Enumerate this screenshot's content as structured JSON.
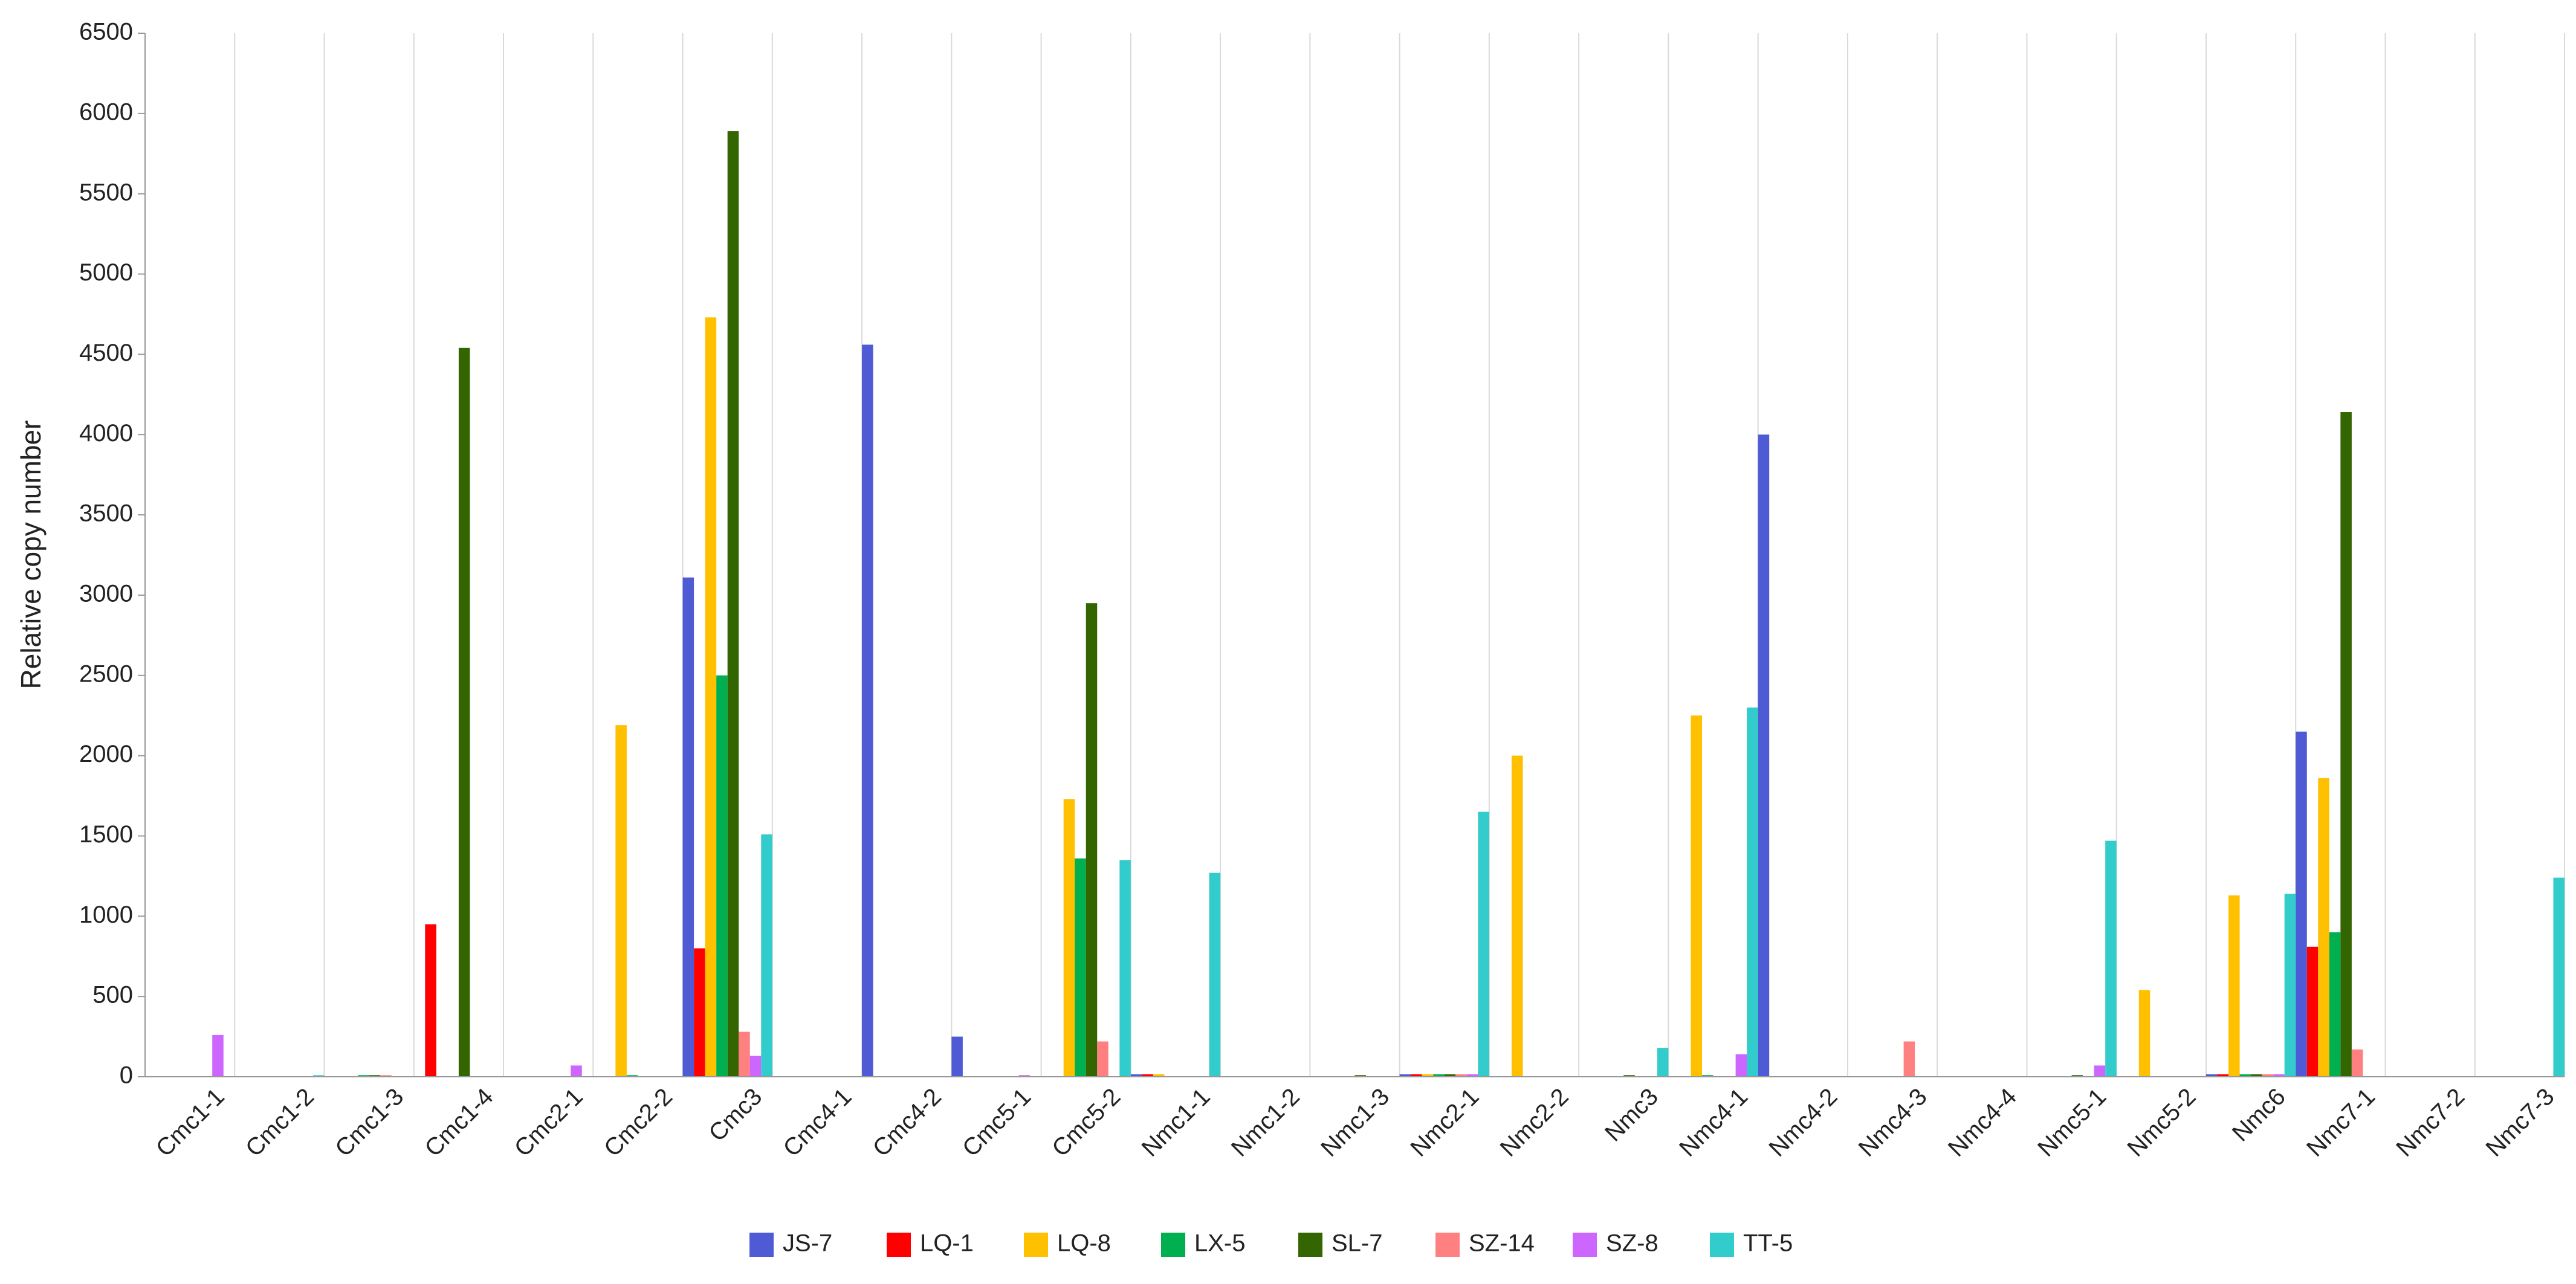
{
  "chart_data": {
    "type": "bar",
    "y_label": "Relative copy number",
    "categories": [
      "Cmc1-1",
      "Cmc1-2",
      "Cmc1-3",
      "Cmc1-4",
      "Cmc2-1",
      "Cmc2-2",
      "Cmc3",
      "Cmc4-1",
      "Cmc4-2",
      "Cmc5-1",
      "Cmc5-2",
      "Nmc1-1",
      "Nmc1-2",
      "Nmc1-3",
      "Nmc2-1",
      "Nmc2-2",
      "Nmc3",
      "Nmc4-1",
      "Nmc4-2",
      "Nmc4-3",
      "Nmc4-4",
      "Nmc5-1",
      "Nmc5-2",
      "Nmc6",
      "Nmc7-1",
      "Nmc7-2",
      "Nmc7-3"
    ],
    "series": [
      {
        "name": "JS-7",
        "color": "#4f5bd5",
        "values": [
          0,
          0,
          0,
          0,
          0,
          0,
          3110,
          0,
          4560,
          250,
          0,
          15,
          0,
          0,
          15,
          0,
          0,
          0,
          4000,
          0,
          0,
          0,
          0,
          15,
          2150,
          0,
          0
        ]
      },
      {
        "name": "LQ-1",
        "color": "#ff0000",
        "values": [
          0,
          0,
          0,
          950,
          0,
          0,
          800,
          0,
          0,
          0,
          0,
          15,
          0,
          0,
          15,
          0,
          0,
          0,
          0,
          0,
          0,
          0,
          0,
          15,
          810,
          0,
          0
        ]
      },
      {
        "name": "LQ-8",
        "color": "#ffc000",
        "values": [
          0,
          0,
          0,
          0,
          0,
          2190,
          4730,
          0,
          0,
          0,
          1730,
          15,
          0,
          0,
          15,
          2000,
          0,
          2250,
          0,
          0,
          0,
          0,
          540,
          1130,
          1860,
          0,
          0
        ]
      },
      {
        "name": "LX-5",
        "color": "#00b050",
        "values": [
          0,
          0,
          10,
          0,
          0,
          10,
          2500,
          0,
          0,
          0,
          1360,
          0,
          0,
          0,
          15,
          0,
          0,
          10,
          0,
          0,
          0,
          0,
          0,
          15,
          900,
          0,
          0
        ]
      },
      {
        "name": "SL-7",
        "color": "#336600",
        "values": [
          0,
          0,
          10,
          4540,
          0,
          0,
          5890,
          0,
          0,
          0,
          2950,
          0,
          0,
          10,
          15,
          0,
          10,
          0,
          0,
          0,
          0,
          10,
          0,
          15,
          4140,
          0,
          0
        ]
      },
      {
        "name": "SZ-14",
        "color": "#ff8080",
        "values": [
          0,
          0,
          10,
          0,
          0,
          0,
          280,
          0,
          0,
          0,
          220,
          0,
          0,
          0,
          15,
          0,
          0,
          0,
          0,
          220,
          0,
          0,
          0,
          15,
          170,
          0,
          0
        ]
      },
      {
        "name": "SZ-8",
        "color": "#cc66ff",
        "values": [
          260,
          0,
          0,
          0,
          70,
          0,
          130,
          0,
          0,
          10,
          0,
          0,
          0,
          0,
          15,
          0,
          0,
          140,
          0,
          0,
          0,
          70,
          0,
          15,
          0,
          0,
          0
        ]
      },
      {
        "name": "TT-5",
        "color": "#33cccc",
        "values": [
          0,
          10,
          0,
          0,
          0,
          0,
          1510,
          0,
          0,
          0,
          1350,
          1270,
          0,
          0,
          1650,
          0,
          180,
          2300,
          0,
          0,
          0,
          1470,
          0,
          1140,
          0,
          0,
          1240
        ]
      }
    ],
    "ylim": [
      0,
      6500
    ],
    "yticks": [
      0,
      500,
      1000,
      1500,
      2000,
      2500,
      3000,
      3500,
      4000,
      4500,
      5000,
      5500,
      6000,
      6500
    ],
    "legend": "bottom"
  }
}
